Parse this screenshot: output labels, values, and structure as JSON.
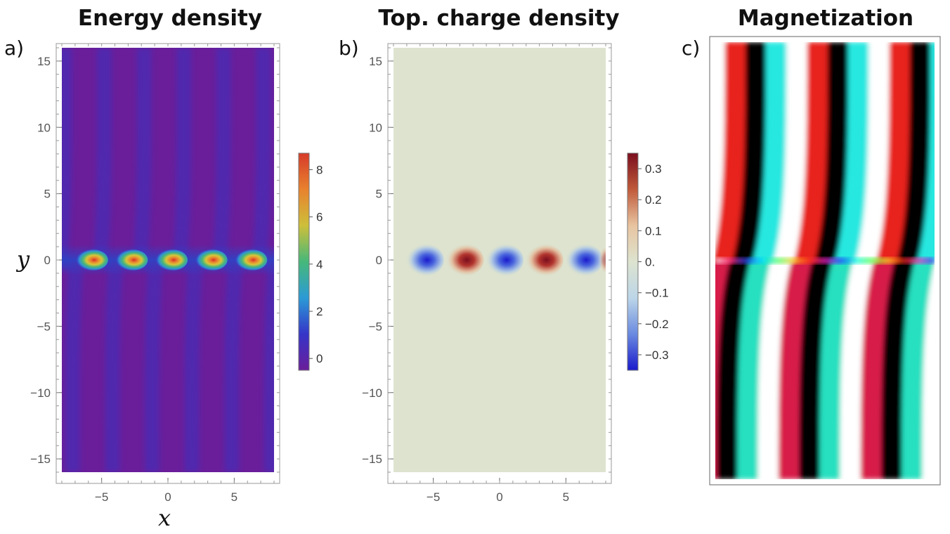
{
  "panels": [
    {
      "letter": "a)",
      "title": "Energy density"
    },
    {
      "letter": "b)",
      "title": "Top. charge density"
    },
    {
      "letter": "c)",
      "title": "Magnetization"
    }
  ],
  "axes": {
    "x_var": "x",
    "y_var": "y"
  },
  "chart_data": [
    {
      "type": "heatmap",
      "title": "Energy density",
      "xlabel": "x",
      "ylabel": "y",
      "xlim": [
        -8,
        8
      ],
      "ylim": [
        -16,
        16
      ],
      "x_ticks": [
        "-5",
        "0",
        "5"
      ],
      "y_ticks": [
        "15",
        "10",
        "5",
        "0",
        "-5",
        "-10",
        "-15"
      ],
      "x_tick_values": [
        -5,
        0,
        5
      ],
      "y_tick_values": [
        15,
        10,
        5,
        0,
        -5,
        -10,
        -15
      ],
      "peaks_x": [
        -6,
        -3,
        0,
        3,
        6
      ],
      "peak_y": 0,
      "peak_value": 8.5,
      "colorbar": {
        "min": -0.5,
        "max": 8.7,
        "ticks": [
          "8",
          "6",
          "4",
          "2",
          "0"
        ],
        "tick_values": [
          8,
          6,
          4,
          2,
          0
        ],
        "colors": [
          "#6a1e9a",
          "#3535c8",
          "#2c9ad6",
          "#46b87a",
          "#cdbf3a",
          "#e8822e",
          "#d63a2a"
        ]
      }
    },
    {
      "type": "heatmap",
      "title": "Top. charge density",
      "xlabel": "x",
      "ylabel": "y",
      "xlim": [
        -8,
        8
      ],
      "ylim": [
        -16,
        16
      ],
      "x_ticks": [
        "-5",
        "0",
        "5"
      ],
      "y_ticks": [
        "15",
        "10",
        "5",
        "0",
        "-5",
        "-10",
        "-15"
      ],
      "x_tick_values": [
        -5,
        0,
        5
      ],
      "y_tick_values": [
        15,
        10,
        5,
        0,
        -5,
        -10,
        -15
      ],
      "negative_peaks_x": [
        -6,
        0,
        6
      ],
      "positive_peaks_x": [
        -3,
        3
      ],
      "peak_value": 0.33,
      "colorbar": {
        "min": -0.35,
        "max": 0.35,
        "ticks": [
          "0.3",
          "0.2",
          "0.1",
          "0.",
          "−0.1",
          "−0.2",
          "−0.3"
        ],
        "tick_values": [
          0.3,
          0.2,
          0.1,
          0,
          -0.1,
          -0.2,
          -0.3
        ],
        "colors": [
          "#1a1acc",
          "#6a8ae0",
          "#bcd6e8",
          "#dde3cf",
          "#e8c4a0",
          "#c05a3a",
          "#7a0e1e"
        ]
      }
    },
    {
      "type": "heatmap",
      "title": "Magnetization",
      "xlim": [
        -8,
        8
      ],
      "ylim": [
        -16,
        16
      ],
      "stripe_colors": [
        "white",
        "red",
        "black",
        "cyan"
      ]
    }
  ]
}
